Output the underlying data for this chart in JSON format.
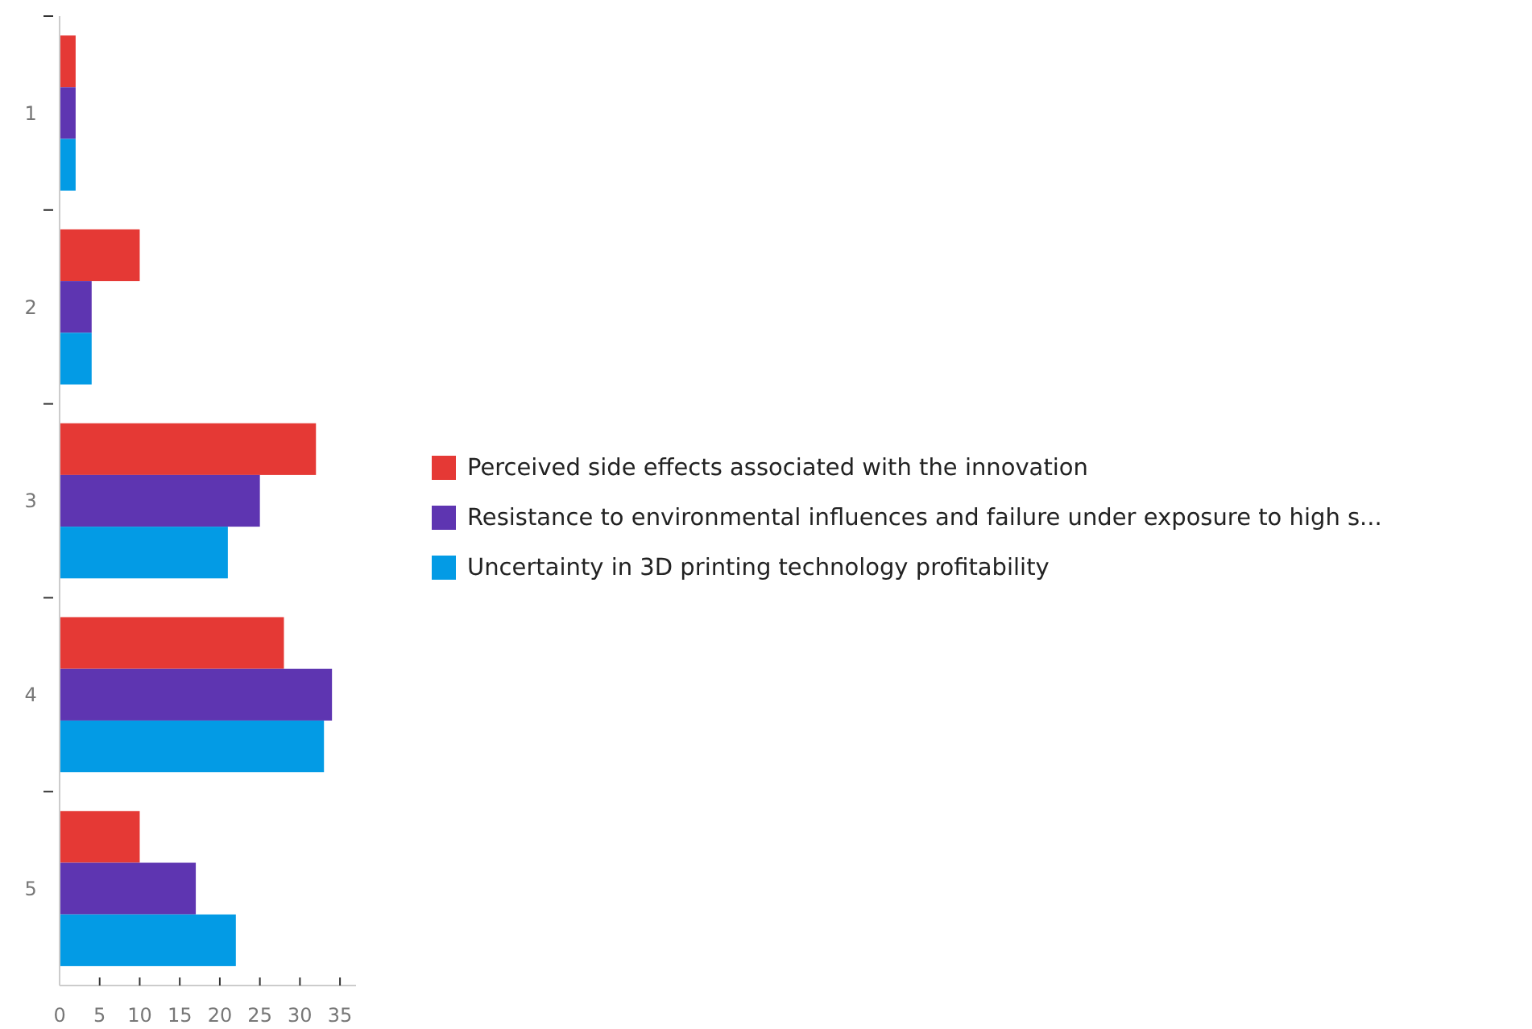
{
  "chart_data": {
    "type": "bar",
    "orientation": "horizontal",
    "categories": [
      "1",
      "2",
      "3",
      "4",
      "5"
    ],
    "series": [
      {
        "name": "Perceived side effects associated with the innovation",
        "color": "#e53935",
        "values": [
          2,
          10,
          32,
          28,
          10
        ]
      },
      {
        "name": "Resistance to environmental influences and failure under exposure to high s...",
        "color": "#5e35b1",
        "values": [
          2,
          4,
          25,
          34,
          17
        ]
      },
      {
        "name": "Uncertainty in 3D printing technology profitability",
        "color": "#039be5",
        "values": [
          2,
          4,
          21,
          33,
          22
        ]
      }
    ],
    "xlim": [
      0,
      37
    ],
    "xticks": [
      0,
      5,
      10,
      15,
      20,
      25,
      30,
      35
    ],
    "grid": false,
    "legend": "right"
  }
}
